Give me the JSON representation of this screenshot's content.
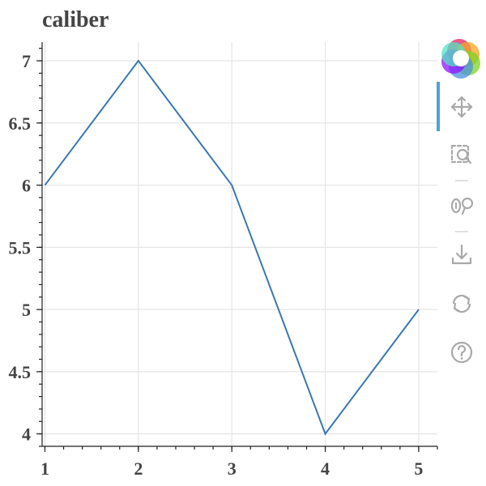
{
  "chart_data": {
    "type": "line",
    "title": "caliber",
    "xlabel": "",
    "ylabel": "",
    "x": [
      1,
      2,
      3,
      4,
      5
    ],
    "series": [
      {
        "values": [
          6,
          7,
          6,
          4,
          5
        ],
        "color": "#3a78ad"
      }
    ],
    "xlim": [
      0.97,
      5.2
    ],
    "ylim": [
      3.9,
      7.15
    ],
    "x_ticks": [
      1,
      2,
      3,
      4,
      5
    ],
    "x_tick_labels": [
      "1",
      "2",
      "3",
      "4",
      "5"
    ],
    "y_ticks": [
      4,
      4.5,
      5,
      5.5,
      6,
      6.5,
      7
    ],
    "y_tick_labels": [
      "4",
      "4.5",
      "5",
      "5.5",
      "6",
      "6.5",
      "7"
    ],
    "grid": true,
    "legend": "none"
  },
  "toolbar": {
    "items": [
      {
        "icon": "bokeh-logo-icon"
      },
      {
        "icon": "pan-icon",
        "active": true
      },
      {
        "icon": "box-zoom-icon"
      },
      {
        "icon": "wheel-zoom-icon"
      },
      {
        "icon": "save-icon"
      },
      {
        "icon": "reset-icon"
      },
      {
        "icon": "help-icon"
      }
    ],
    "active_color": "#4fa3d1"
  }
}
